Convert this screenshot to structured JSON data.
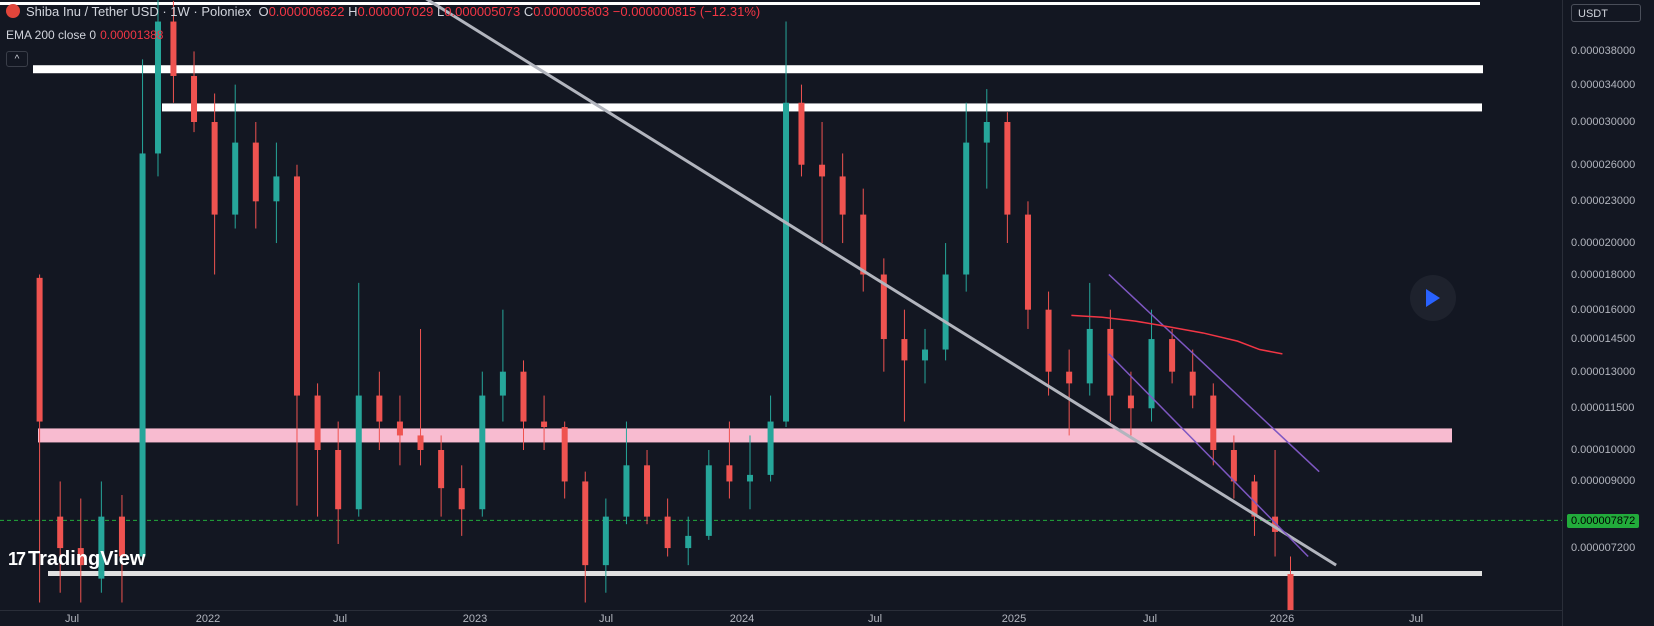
{
  "header": {
    "symbol_name": "Shiba Inu / Tether USD · 1W · Poloniex",
    "o_label": "O",
    "o_value": "0.000006622",
    "h_label": "H",
    "h_value": "0.000007029",
    "l_label": "L",
    "l_value": "0.000005073",
    "c_label": "C",
    "c_value": "0.000005803",
    "change": "−0.000000815 (−12.31%)",
    "symbol_color": "#e0453b"
  },
  "indicator": {
    "label": "EMA 200 close 0",
    "value": "0.00001388",
    "color": "#f23645"
  },
  "logo_text": "TradingView",
  "currency_label": "USDT",
  "last_price_tag": "0.000007872",
  "chart_data": {
    "type": "candlestick",
    "timeframe": "1W",
    "y_scale": "log",
    "y_ticks": [
      "0.000038000",
      "0.000034000",
      "0.000030000",
      "0.000026000",
      "0.000023000",
      "0.000020000",
      "0.000018000",
      "0.000016000",
      "0.000014500",
      "0.000013000",
      "0.000011500",
      "0.000010000",
      "0.000009000",
      "0.000007200"
    ],
    "x_ticks": [
      "Jul",
      "2022",
      "Jul",
      "2023",
      "Jul",
      "2024",
      "Jul",
      "2025",
      "Jul",
      "2026",
      "Jul"
    ],
    "ema_200": [
      {
        "date": "2025-03-20",
        "value": 1.57e-05
      },
      {
        "date": "2025-05-01",
        "value": 1.56e-05
      },
      {
        "date": "2025-06-15",
        "value": 1.54e-05
      },
      {
        "date": "2025-08-01",
        "value": 1.51e-05
      },
      {
        "date": "2025-09-15",
        "value": 1.48e-05
      },
      {
        "date": "2025-11-01",
        "value": 1.44e-05
      },
      {
        "date": "2025-12-01",
        "value": 1.4e-05
      },
      {
        "date": "2026-01-01",
        "value": 1.38e-05
      }
    ],
    "horizontal_levels": [
      {
        "value": 3.58e-05,
        "color": "#ffffff"
      },
      {
        "value": 3.15e-05,
        "color": "#ffffff"
      },
      {
        "value": 1.05e-05,
        "color": "#f8bbd0"
      },
      {
        "value": 7.9e-06,
        "color": "#22ab3b",
        "style": "dashed"
      }
    ],
    "trend_lines": [
      {
        "from": {
          "date": "2022-10-15",
          "value": 4.6e-05
        },
        "to": {
          "date": "2026-03-15",
          "value": 6.8e-06
        },
        "color": "#b2b5be"
      },
      {
        "from": {
          "date": "2025-05-10",
          "value": 1.8e-05
        },
        "to": {
          "date": "2026-02-20",
          "value": 9.3e-06
        },
        "color": "#7e57c2"
      },
      {
        "from": {
          "date": "2025-05-10",
          "value": 1.38e-05
        },
        "to": {
          "date": "2026-02-05",
          "value": 7e-06
        },
        "color": "#7e57c2"
      }
    ],
    "candles": [
      {
        "date": "2021-05-17",
        "o": 1.78e-05,
        "h": 1.8e-05,
        "l": 6e-06,
        "c": 1.1e-05
      },
      {
        "date": "2021-06-14",
        "o": 8e-06,
        "h": 9e-06,
        "l": 6.2e-06,
        "c": 7.2e-06
      },
      {
        "date": "2021-07-12",
        "o": 7.2e-06,
        "h": 8.5e-06,
        "l": 6e-06,
        "c": 6.8e-06
      },
      {
        "date": "2021-08-09",
        "o": 6.5e-06,
        "h": 9e-06,
        "l": 6.2e-06,
        "c": 8e-06
      },
      {
        "date": "2021-09-06",
        "o": 8e-06,
        "h": 8.6e-06,
        "l": 6e-06,
        "c": 7e-06
      },
      {
        "date": "2021-10-04",
        "o": 7e-06,
        "h": 3.7e-05,
        "l": 6.8e-06,
        "c": 2.7e-05
      },
      {
        "date": "2021-10-25",
        "o": 2.7e-05,
        "h": 4.6e-05,
        "l": 2.5e-05,
        "c": 4.2e-05
      },
      {
        "date": "2021-11-15",
        "o": 4.2e-05,
        "h": 4.5e-05,
        "l": 3.2e-05,
        "c": 3.5e-05
      },
      {
        "date": "2021-12-13",
        "o": 3.5e-05,
        "h": 3.8e-05,
        "l": 2.9e-05,
        "c": 3e-05
      },
      {
        "date": "2022-01-10",
        "o": 3e-05,
        "h": 3.3e-05,
        "l": 1.8e-05,
        "c": 2.2e-05
      },
      {
        "date": "2022-02-07",
        "o": 2.2e-05,
        "h": 3.4e-05,
        "l": 2.1e-05,
        "c": 2.8e-05
      },
      {
        "date": "2022-03-07",
        "o": 2.8e-05,
        "h": 3e-05,
        "l": 2.1e-05,
        "c": 2.3e-05
      },
      {
        "date": "2022-04-04",
        "o": 2.3e-05,
        "h": 2.8e-05,
        "l": 2e-05,
        "c": 2.5e-05
      },
      {
        "date": "2022-05-02",
        "o": 2.5e-05,
        "h": 2.6e-05,
        "l": 8.3e-06,
        "c": 1.2e-05
      },
      {
        "date": "2022-05-30",
        "o": 1.2e-05,
        "h": 1.25e-05,
        "l": 8e-06,
        "c": 1e-05
      },
      {
        "date": "2022-06-27",
        "o": 1e-05,
        "h": 1.1e-05,
        "l": 7.3e-06,
        "c": 8.2e-06
      },
      {
        "date": "2022-07-25",
        "o": 8.2e-06,
        "h": 1.75e-05,
        "l": 8e-06,
        "c": 1.2e-05
      },
      {
        "date": "2022-08-22",
        "o": 1.2e-05,
        "h": 1.3e-05,
        "l": 1e-05,
        "c": 1.1e-05
      },
      {
        "date": "2022-09-19",
        "o": 1.1e-05,
        "h": 1.2e-05,
        "l": 9.5e-06,
        "c": 1.05e-05
      },
      {
        "date": "2022-10-17",
        "o": 1.05e-05,
        "h": 1.5e-05,
        "l": 9.5e-06,
        "c": 1e-05
      },
      {
        "date": "2022-11-14",
        "o": 1e-05,
        "h": 1.05e-05,
        "l": 8e-06,
        "c": 8.8e-06
      },
      {
        "date": "2022-12-12",
        "o": 8.8e-06,
        "h": 9.5e-06,
        "l": 7.5e-06,
        "c": 8.2e-06
      },
      {
        "date": "2023-01-09",
        "o": 8.2e-06,
        "h": 1.3e-05,
        "l": 8e-06,
        "c": 1.2e-05
      },
      {
        "date": "2023-02-06",
        "o": 1.2e-05,
        "h": 1.6e-05,
        "l": 1.1e-05,
        "c": 1.3e-05
      },
      {
        "date": "2023-03-06",
        "o": 1.3e-05,
        "h": 1.35e-05,
        "l": 1e-05,
        "c": 1.1e-05
      },
      {
        "date": "2023-04-03",
        "o": 1.1e-05,
        "h": 1.2e-05,
        "l": 1e-05,
        "c": 1.08e-05
      },
      {
        "date": "2023-05-01",
        "o": 1.08e-05,
        "h": 1.1e-05,
        "l": 8.5e-06,
        "c": 9e-06
      },
      {
        "date": "2023-05-29",
        "o": 9e-06,
        "h": 9.3e-06,
        "l": 6e-06,
        "c": 6.8e-06
      },
      {
        "date": "2023-06-26",
        "o": 6.8e-06,
        "h": 8.5e-06,
        "l": 6.2e-06,
        "c": 8e-06
      },
      {
        "date": "2023-07-24",
        "o": 8e-06,
        "h": 1.1e-05,
        "l": 7.8e-06,
        "c": 9.5e-06
      },
      {
        "date": "2023-08-21",
        "o": 9.5e-06,
        "h": 1e-05,
        "l": 7.8e-06,
        "c": 8e-06
      },
      {
        "date": "2023-09-18",
        "o": 8e-06,
        "h": 8.5e-06,
        "l": 7e-06,
        "c": 7.2e-06
      },
      {
        "date": "2023-10-16",
        "o": 7.2e-06,
        "h": 8e-06,
        "l": 6.8e-06,
        "c": 7.5e-06
      },
      {
        "date": "2023-11-13",
        "o": 7.5e-06,
        "h": 1e-05,
        "l": 7.4e-06,
        "c": 9.5e-06
      },
      {
        "date": "2023-12-11",
        "o": 9.5e-06,
        "h": 1.1e-05,
        "l": 8.5e-06,
        "c": 9e-06
      },
      {
        "date": "2024-01-08",
        "o": 9e-06,
        "h": 1.05e-05,
        "l": 8.2e-06,
        "c": 9.2e-06
      },
      {
        "date": "2024-02-05",
        "o": 9.2e-06,
        "h": 1.2e-05,
        "l": 9e-06,
        "c": 1.1e-05
      },
      {
        "date": "2024-02-26",
        "o": 1.1e-05,
        "h": 4.2e-05,
        "l": 1.08e-05,
        "c": 3.2e-05
      },
      {
        "date": "2024-03-18",
        "o": 3.2e-05,
        "h": 3.4e-05,
        "l": 2.5e-05,
        "c": 2.6e-05
      },
      {
        "date": "2024-04-15",
        "o": 2.6e-05,
        "h": 3e-05,
        "l": 2e-05,
        "c": 2.5e-05
      },
      {
        "date": "2024-05-13",
        "o": 2.5e-05,
        "h": 2.7e-05,
        "l": 2e-05,
        "c": 2.2e-05
      },
      {
        "date": "2024-06-10",
        "o": 2.2e-05,
        "h": 2.4e-05,
        "l": 1.7e-05,
        "c": 1.8e-05
      },
      {
        "date": "2024-07-08",
        "o": 1.8e-05,
        "h": 1.9e-05,
        "l": 1.3e-05,
        "c": 1.45e-05
      },
      {
        "date": "2024-08-05",
        "o": 1.45e-05,
        "h": 1.6e-05,
        "l": 1.1e-05,
        "c": 1.35e-05
      },
      {
        "date": "2024-09-02",
        "o": 1.35e-05,
        "h": 1.5e-05,
        "l": 1.25e-05,
        "c": 1.4e-05
      },
      {
        "date": "2024-09-30",
        "o": 1.4e-05,
        "h": 2e-05,
        "l": 1.35e-05,
        "c": 1.8e-05
      },
      {
        "date": "2024-10-28",
        "o": 1.8e-05,
        "h": 3.2e-05,
        "l": 1.7e-05,
        "c": 2.8e-05
      },
      {
        "date": "2024-11-25",
        "o": 2.8e-05,
        "h": 3.35e-05,
        "l": 2.4e-05,
        "c": 3e-05
      },
      {
        "date": "2024-12-23",
        "o": 3e-05,
        "h": 3.1e-05,
        "l": 2e-05,
        "c": 2.2e-05
      },
      {
        "date": "2025-01-20",
        "o": 2.2e-05,
        "h": 2.3e-05,
        "l": 1.5e-05,
        "c": 1.6e-05
      },
      {
        "date": "2025-02-17",
        "o": 1.6e-05,
        "h": 1.7e-05,
        "l": 1.2e-05,
        "c": 1.3e-05
      },
      {
        "date": "2025-03-17",
        "o": 1.3e-05,
        "h": 1.4e-05,
        "l": 1.05e-05,
        "c": 1.25e-05
      },
      {
        "date": "2025-04-14",
        "o": 1.25e-05,
        "h": 1.75e-05,
        "l": 1.2e-05,
        "c": 1.5e-05
      },
      {
        "date": "2025-05-12",
        "o": 1.5e-05,
        "h": 1.6e-05,
        "l": 1.1e-05,
        "c": 1.2e-05
      },
      {
        "date": "2025-06-09",
        "o": 1.2e-05,
        "h": 1.3e-05,
        "l": 1.05e-05,
        "c": 1.15e-05
      },
      {
        "date": "2025-07-07",
        "o": 1.15e-05,
        "h": 1.6e-05,
        "l": 1.1e-05,
        "c": 1.45e-05
      },
      {
        "date": "2025-08-04",
        "o": 1.45e-05,
        "h": 1.5e-05,
        "l": 1.25e-05,
        "c": 1.3e-05
      },
      {
        "date": "2025-09-01",
        "o": 1.3e-05,
        "h": 1.4e-05,
        "l": 1.15e-05,
        "c": 1.2e-05
      },
      {
        "date": "2025-09-29",
        "o": 1.2e-05,
        "h": 1.25e-05,
        "l": 9.5e-06,
        "c": 1e-05
      },
      {
        "date": "2025-10-27",
        "o": 1e-05,
        "h": 1.05e-05,
        "l": 8.5e-06,
        "c": 9e-06
      },
      {
        "date": "2025-11-24",
        "o": 9e-06,
        "h": 9.2e-06,
        "l": 7.5e-06,
        "c": 8e-06
      },
      {
        "date": "2025-12-22",
        "o": 8e-06,
        "h": 1e-05,
        "l": 7e-06,
        "c": 7.6e-06
      },
      {
        "date": "2026-01-12",
        "o": 6.6e-06,
        "h": 7e-06,
        "l": 5.1e-06,
        "c": 5.8e-06
      }
    ]
  }
}
